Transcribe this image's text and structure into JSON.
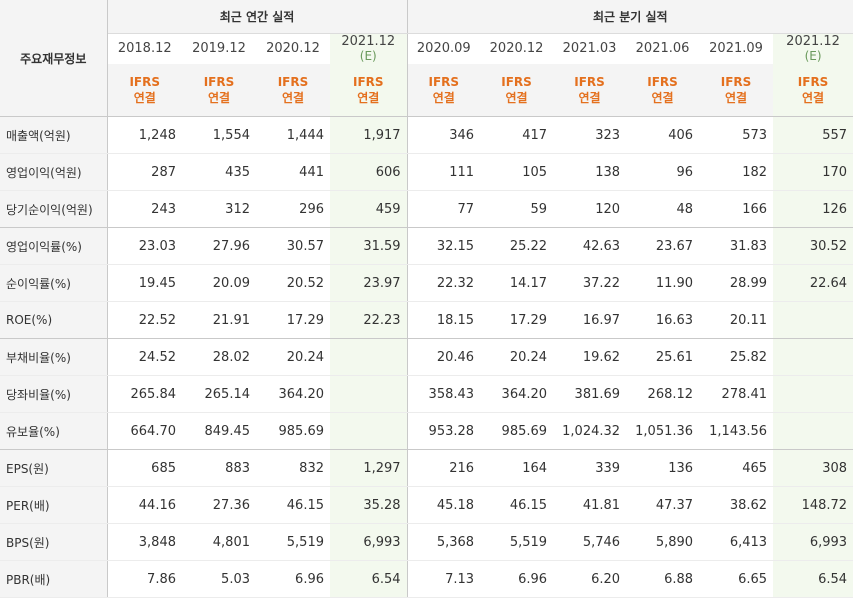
{
  "headers": {
    "stub": "주요재무정보",
    "group_annual": "최근 연간 실적",
    "group_quarter": "최근 분기 실적",
    "ifrs_line1": "IFRS",
    "ifrs_line2": "연결",
    "estimate_mark": "(E)"
  },
  "periods": {
    "annual": [
      "2018.12",
      "2019.12",
      "2020.12",
      "2021.12"
    ],
    "quarter": [
      "2020.09",
      "2020.12",
      "2021.03",
      "2021.06",
      "2021.09",
      "2021.12"
    ]
  },
  "rows": [
    {
      "label": "매출액(억원)",
      "values": [
        "1,248",
        "1,554",
        "1,444",
        "1,917",
        "346",
        "417",
        "323",
        "406",
        "573",
        "557"
      ]
    },
    {
      "label": "영업이익(억원)",
      "values": [
        "287",
        "435",
        "441",
        "606",
        "111",
        "105",
        "138",
        "96",
        "182",
        "170"
      ]
    },
    {
      "label": "당기순이익(억원)",
      "values": [
        "243",
        "312",
        "296",
        "459",
        "77",
        "59",
        "120",
        "48",
        "166",
        "126"
      ]
    },
    {
      "label": "영업이익률(%)",
      "values": [
        "23.03",
        "27.96",
        "30.57",
        "31.59",
        "32.15",
        "25.22",
        "42.63",
        "23.67",
        "31.83",
        "30.52"
      ]
    },
    {
      "label": "순이익률(%)",
      "values": [
        "19.45",
        "20.09",
        "20.52",
        "23.97",
        "22.32",
        "14.17",
        "37.22",
        "11.90",
        "28.99",
        "22.64"
      ]
    },
    {
      "label": "ROE(%)",
      "values": [
        "22.52",
        "21.91",
        "17.29",
        "22.23",
        "18.15",
        "17.29",
        "16.97",
        "16.63",
        "20.11",
        ""
      ]
    },
    {
      "label": "부채비율(%)",
      "values": [
        "24.52",
        "28.02",
        "20.24",
        "",
        "20.46",
        "20.24",
        "19.62",
        "25.61",
        "25.82",
        ""
      ]
    },
    {
      "label": "당좌비율(%)",
      "values": [
        "265.84",
        "265.14",
        "364.20",
        "",
        "358.43",
        "364.20",
        "381.69",
        "268.12",
        "278.41",
        ""
      ]
    },
    {
      "label": "유보율(%)",
      "values": [
        "664.70",
        "849.45",
        "985.69",
        "",
        "953.28",
        "985.69",
        "1,024.32",
        "1,051.36",
        "1,143.56",
        ""
      ]
    },
    {
      "label": "EPS(원)",
      "values": [
        "685",
        "883",
        "832",
        "1,297",
        "216",
        "164",
        "339",
        "136",
        "465",
        "308"
      ]
    },
    {
      "label": "PER(배)",
      "values": [
        "44.16",
        "27.36",
        "46.15",
        "35.28",
        "45.18",
        "46.15",
        "41.81",
        "47.37",
        "38.62",
        "148.72"
      ]
    },
    {
      "label": "BPS(원)",
      "values": [
        "3,848",
        "4,801",
        "5,519",
        "6,993",
        "5,368",
        "5,519",
        "5,746",
        "5,890",
        "6,413",
        "6,993"
      ]
    },
    {
      "label": "PBR(배)",
      "values": [
        "7.86",
        "5.03",
        "6.96",
        "6.54",
        "7.13",
        "6.96",
        "6.20",
        "6.88",
        "6.65",
        "6.54"
      ]
    }
  ]
}
